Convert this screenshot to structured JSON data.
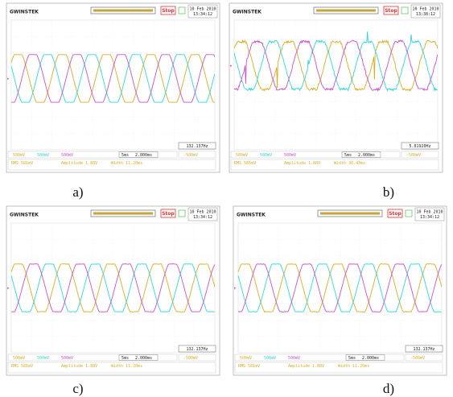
{
  "panels": [
    {
      "brand": "GWINSTEK",
      "status": "Stop",
      "date": "10 Feb 2010",
      "time": "13:34:12",
      "frequency": "132.137Hz",
      "channels": [
        "500mV",
        "500mV",
        "500mV"
      ],
      "timebase": "5ms",
      "position": "2.000ms",
      "trigger": "-500mV",
      "measurements": [
        "RMS 581mV",
        "Amplitude 1.88V",
        "Width 11.20ms"
      ],
      "label": "a)"
    },
    {
      "brand": "GWINSTEK",
      "status": "Stop",
      "date": "10 Feb 2010",
      "time": "13:38:12",
      "frequency": "5.01920Hz",
      "channels": [
        "500mV",
        "500mV",
        "500mV"
      ],
      "timebase": "5ms",
      "position": "2.000ms",
      "trigger": "-500mV",
      "measurements": [
        "RMS 585mV",
        "Amplitude 1.88V",
        "Width 30.43ms"
      ],
      "label": "b)"
    },
    {
      "brand": "GWINSTEK",
      "status": "Stop",
      "date": "10 Feb 2010",
      "time": "13:34:12",
      "frequency": "132.137Hz",
      "channels": [
        "500mV",
        "500mV",
        "500mV"
      ],
      "timebase": "5ms",
      "position": "2.000ms",
      "trigger": "-500mV",
      "measurements": [
        "RMS 581mV",
        "Amplitude 1.88V",
        "Width 11.20ms"
      ],
      "label": "c)"
    },
    {
      "brand": "GWINSTEK",
      "status": "Stop",
      "date": "10 Feb 2010",
      "time": "13:34:12",
      "frequency": "132.137Hz",
      "channels": [
        "500mV",
        "500mV",
        "500mV"
      ],
      "timebase": "5ms",
      "position": "2.000ms",
      "trigger": "-500mV",
      "measurements": [
        "RMS 581mV",
        "Amplitude 1.88V",
        "Width 11.20ms"
      ],
      "label": "d)"
    }
  ]
}
